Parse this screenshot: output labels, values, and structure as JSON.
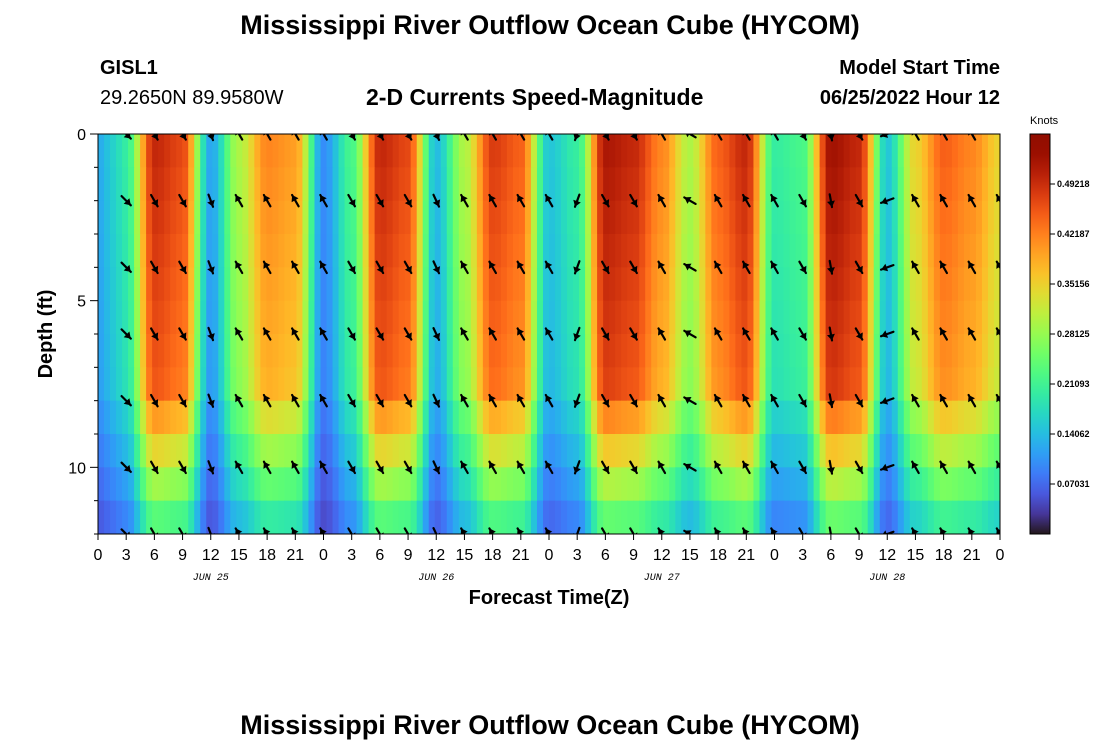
{
  "header": {
    "title_top": "Mississippi River Outflow Ocean Cube (HYCOM)",
    "title_bottom": "Mississippi River Outflow Ocean Cube (HYCOM)",
    "station_id": "GISL1",
    "station_coords": "29.2650N  89.9580W",
    "plot_title": "2-D Currents Speed-Magnitude",
    "model_start_label": "Model Start Time",
    "model_start_value": "06/25/2022 Hour 12"
  },
  "colors": {
    "low": "#30123b",
    "high": "#7a0403",
    "arrow": "#000000"
  },
  "chart_data": {
    "type": "heatmap",
    "title": "2-D Currents Speed-Magnitude",
    "xlabel": "Forecast Time(Z)",
    "ylabel": "Depth (ft)",
    "x_tick_labels": [
      "0",
      "3",
      "6",
      "9",
      "12",
      "15",
      "18",
      "21",
      "0",
      "3",
      "6",
      "9",
      "12",
      "15",
      "18",
      "21",
      "0",
      "3",
      "6",
      "9",
      "12",
      "15",
      "18",
      "21",
      "0",
      "3",
      "6",
      "9",
      "12",
      "15",
      "18",
      "21",
      "0"
    ],
    "x_range_hours": [
      0,
      96
    ],
    "date_labels": [
      {
        "label": "JUN 25",
        "hour": 12
      },
      {
        "label": "JUN 26",
        "hour": 36
      },
      {
        "label": "JUN 27",
        "hour": 60
      },
      {
        "label": "JUN 28",
        "hour": 84
      }
    ],
    "y_tick_labels": [
      "0",
      "5",
      "10"
    ],
    "y_ticks": [
      0,
      5,
      10
    ],
    "ylim": [
      0,
      12
    ],
    "y_inverted": true,
    "colorbar": {
      "label": "Knots",
      "ticks": [
        "0.07031",
        "0.14062",
        "0.21093",
        "0.28125",
        "0.35156",
        "0.42187",
        "0.49218"
      ],
      "tick_values": [
        0.07031,
        0.14062,
        0.21093,
        0.28125,
        0.35156,
        0.42187,
        0.49218
      ],
      "range": [
        0.0,
        0.5625
      ],
      "colormap": "turbo"
    },
    "depth_levels_ft": [
      0,
      2,
      4,
      6,
      8,
      10,
      12
    ],
    "arrow_hours": [
      3,
      6,
      9,
      12,
      15,
      18,
      21,
      24,
      27,
      30,
      33,
      36,
      39,
      42,
      45,
      48,
      51,
      54,
      57,
      60,
      63,
      66,
      69,
      72,
      75,
      78,
      81,
      84,
      87,
      90,
      93,
      96
    ],
    "flow_phases": [
      {
        "hour": 3,
        "speed": 0.2,
        "direction_deg": 135
      },
      {
        "hour": 6,
        "speed": 0.5,
        "direction_deg": 150
      },
      {
        "hour": 9,
        "speed": 0.47,
        "direction_deg": 150
      },
      {
        "hour": 12,
        "speed": 0.12,
        "direction_deg": 160
      },
      {
        "hour": 15,
        "speed": 0.3,
        "direction_deg": 330
      },
      {
        "hour": 18,
        "speed": 0.42,
        "direction_deg": 330
      },
      {
        "hour": 21,
        "speed": 0.4,
        "direction_deg": 330
      },
      {
        "hour": 24,
        "speed": 0.1,
        "direction_deg": 330
      },
      {
        "hour": 27,
        "speed": 0.22,
        "direction_deg": 150
      },
      {
        "hour": 30,
        "speed": 0.5,
        "direction_deg": 150
      },
      {
        "hour": 33,
        "speed": 0.47,
        "direction_deg": 150
      },
      {
        "hour": 36,
        "speed": 0.14,
        "direction_deg": 155
      },
      {
        "hour": 39,
        "speed": 0.3,
        "direction_deg": 330
      },
      {
        "hour": 42,
        "speed": 0.48,
        "direction_deg": 330
      },
      {
        "hour": 45,
        "speed": 0.45,
        "direction_deg": 330
      },
      {
        "hour": 48,
        "speed": 0.15,
        "direction_deg": 330
      },
      {
        "hour": 51,
        "speed": 0.2,
        "direction_deg": 200
      },
      {
        "hour": 54,
        "speed": 0.52,
        "direction_deg": 150
      },
      {
        "hour": 57,
        "speed": 0.5,
        "direction_deg": 150
      },
      {
        "hour": 60,
        "speed": 0.42,
        "direction_deg": 330
      },
      {
        "hour": 63,
        "speed": 0.3,
        "direction_deg": 300
      },
      {
        "hour": 66,
        "speed": 0.45,
        "direction_deg": 330
      },
      {
        "hour": 69,
        "speed": 0.5,
        "direction_deg": 330
      },
      {
        "hour": 72,
        "speed": 0.2,
        "direction_deg": 330
      },
      {
        "hour": 75,
        "speed": 0.22,
        "direction_deg": 150
      },
      {
        "hour": 78,
        "speed": 0.53,
        "direction_deg": 170
      },
      {
        "hour": 81,
        "speed": 0.5,
        "direction_deg": 150
      },
      {
        "hour": 84,
        "speed": 0.15,
        "direction_deg": 250
      },
      {
        "hour": 87,
        "speed": 0.35,
        "direction_deg": 330
      },
      {
        "hour": 90,
        "speed": 0.45,
        "direction_deg": 330
      },
      {
        "hour": 93,
        "speed": 0.42,
        "direction_deg": 330
      },
      {
        "hour": 96,
        "speed": 0.35,
        "direction_deg": 330
      }
    ]
  }
}
